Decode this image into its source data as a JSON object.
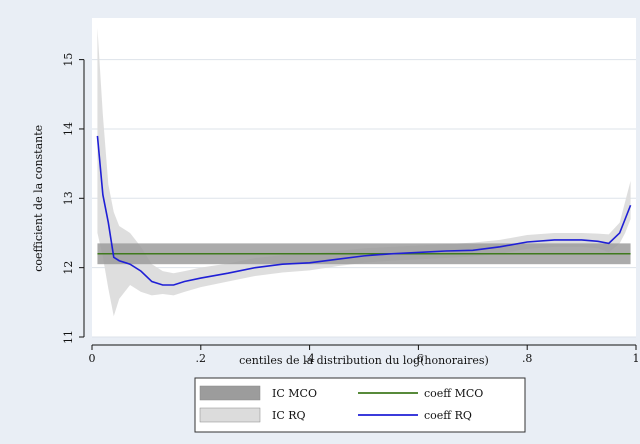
{
  "chart_data": {
    "type": "line",
    "xlabel": "centiles de la distribution du log(honoraires)",
    "ylabel": "coefficient de la constante",
    "xlim": [
      0,
      1
    ],
    "ylim": [
      11.0,
      15.6
    ],
    "x_ticks": [
      0,
      0.2,
      0.4,
      0.6,
      0.8,
      1
    ],
    "x_tick_labels": [
      "0",
      ".2",
      ".4",
      ".6",
      ".8",
      "1"
    ],
    "y_ticks": [
      11,
      12,
      13,
      14,
      15
    ],
    "y_tick_labels": [
      "11",
      "12",
      "13",
      "14",
      "15"
    ],
    "grid": "horizontal",
    "legend_position": "bottom",
    "legend": [
      {
        "key": "ic_mco",
        "label": "IC MCO",
        "kind": "band",
        "color": "#9c9c9c"
      },
      {
        "key": "coeff_mco",
        "label": "coeff MCO",
        "kind": "line",
        "color": "#3f7a1e"
      },
      {
        "key": "ic_rq",
        "label": "IC RQ",
        "kind": "band",
        "color": "#dcdcdc"
      },
      {
        "key": "coeff_rq",
        "label": "coeff RQ",
        "kind": "line",
        "color": "#1f1fd6"
      }
    ],
    "colors": {
      "ic_mco": "#9c9c9c",
      "ic_rq": "#dcdcdc",
      "coeff_mco": "#3f7a1e",
      "coeff_rq": "#1f1fd6",
      "grid": "#dde3ea",
      "plot_bg": "#ffffff",
      "figure_bg": "#e9eef5"
    },
    "ic_mco": {
      "lower": 12.05,
      "upper": 12.35
    },
    "coeff_mco": 12.2,
    "coeff_rq": {
      "x": [
        0.01,
        0.02,
        0.03,
        0.04,
        0.05,
        0.07,
        0.09,
        0.11,
        0.13,
        0.15,
        0.17,
        0.2,
        0.25,
        0.3,
        0.35,
        0.4,
        0.45,
        0.5,
        0.55,
        0.6,
        0.65,
        0.7,
        0.75,
        0.8,
        0.85,
        0.9,
        0.93,
        0.95,
        0.97,
        0.98,
        0.99
      ],
      "y": [
        13.9,
        13.05,
        12.65,
        12.15,
        12.1,
        12.05,
        11.95,
        11.8,
        11.75,
        11.75,
        11.8,
        11.85,
        11.92,
        12.0,
        12.05,
        12.07,
        12.12,
        12.17,
        12.2,
        12.22,
        12.24,
        12.25,
        12.3,
        12.37,
        12.4,
        12.4,
        12.38,
        12.35,
        12.5,
        12.7,
        12.9
      ]
    },
    "ic_rq": {
      "x": [
        0.01,
        0.02,
        0.03,
        0.04,
        0.05,
        0.07,
        0.09,
        0.11,
        0.13,
        0.15,
        0.17,
        0.2,
        0.25,
        0.3,
        0.35,
        0.4,
        0.45,
        0.5,
        0.55,
        0.6,
        0.65,
        0.7,
        0.75,
        0.8,
        0.85,
        0.9,
        0.93,
        0.95,
        0.97,
        0.98,
        0.99
      ],
      "lower": [
        12.5,
        12.15,
        11.7,
        11.3,
        11.55,
        11.75,
        11.65,
        11.6,
        11.62,
        11.6,
        11.65,
        11.72,
        11.8,
        11.88,
        11.93,
        11.96,
        12.02,
        12.07,
        12.1,
        12.12,
        12.14,
        12.16,
        12.2,
        12.27,
        12.3,
        12.3,
        12.28,
        12.22,
        12.35,
        12.5,
        12.7
      ],
      "upper": [
        15.45,
        14.2,
        13.2,
        12.8,
        12.6,
        12.5,
        12.3,
        12.05,
        11.95,
        11.92,
        11.95,
        12.0,
        12.06,
        12.14,
        12.18,
        12.2,
        12.24,
        12.28,
        12.3,
        12.32,
        12.34,
        12.36,
        12.4,
        12.47,
        12.5,
        12.5,
        12.49,
        12.48,
        12.65,
        12.95,
        13.25
      ]
    }
  }
}
